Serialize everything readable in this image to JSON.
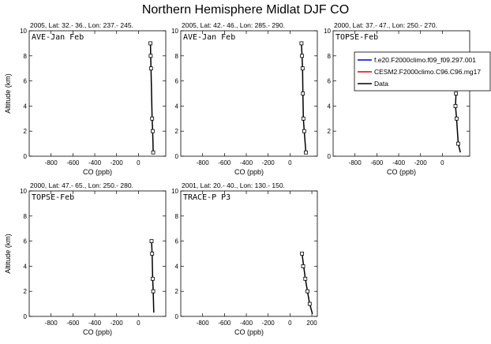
{
  "figure": {
    "title": "Northern Hemisphere Midlat DJF CO"
  },
  "legend": {
    "entries": [
      {
        "label": "f.e20.F2000climo.f09_f09.297.001",
        "color": "#0000cc"
      },
      {
        "label": "CESM2.F2000climo.C96.C96.mg17",
        "color": "#dd0000"
      },
      {
        "label": "Data",
        "color": "#000000"
      }
    ]
  },
  "chart_data": [
    {
      "type": "line",
      "subtitle": "2005, Lat: 32.- 36., Lon: 237.- 245.",
      "panel_label": "AVE-Jan Feb",
      "xlabel": "CO (ppb)",
      "ylabel": "Altitude (km)",
      "xlim": [
        -1000,
        250
      ],
      "ylim": [
        0,
        10
      ],
      "xticks": [
        -800,
        -600,
        -400,
        -200,
        0
      ],
      "yticks": [
        0,
        2,
        4,
        6,
        8,
        10
      ],
      "series": [
        {
          "color": "#000000",
          "x": [
            135,
            130,
            125,
            120,
            115,
            112,
            110
          ],
          "y": [
            0.3,
            2,
            3,
            5,
            7,
            8,
            9
          ]
        }
      ],
      "markers": {
        "x": [
          135,
          130,
          125,
          115,
          112,
          110
        ],
        "y": [
          0.3,
          2,
          3,
          7,
          8,
          9
        ]
      }
    },
    {
      "type": "line",
      "subtitle": "2005, Lat: 42.- 46., Lon: 285.- 290.",
      "panel_label": "AVE-Jan Feb",
      "xlabel": "CO (ppb)",
      "ylabel": "",
      "xlim": [
        -1000,
        250
      ],
      "ylim": [
        0,
        10
      ],
      "xticks": [
        -800,
        -600,
        -400,
        -200,
        0
      ],
      "yticks": [
        0,
        2,
        4,
        6,
        8,
        10
      ],
      "series": [
        {
          "color": "#000000",
          "x": [
            145,
            130,
            122,
            118,
            115,
            110,
            105
          ],
          "y": [
            0.3,
            2,
            3,
            5,
            7,
            8,
            9
          ]
        }
      ],
      "markers": {
        "x": [
          145,
          130,
          122,
          118,
          115,
          110,
          105
        ],
        "y": [
          0.3,
          2,
          3,
          5,
          7,
          8,
          9
        ]
      }
    },
    {
      "type": "line",
      "subtitle": "2000, Lat: 37.- 47., Lon: 250.- 270.",
      "panel_label": "TOPSE-Feb",
      "xlabel": "CO (ppb)",
      "ylabel": "",
      "xlim": [
        -1000,
        250
      ],
      "ylim": [
        0,
        10
      ],
      "xticks": [
        -800,
        -600,
        -400,
        -200,
        0
      ],
      "yticks": [
        0,
        2,
        4,
        6,
        8,
        10
      ],
      "series": [
        {
          "color": "#000000",
          "x": [
            165,
            145,
            130,
            120,
            125
          ],
          "y": [
            0.3,
            1,
            3,
            4,
            5
          ]
        }
      ],
      "markers": {
        "x": [
          145,
          130,
          120,
          125
        ],
        "y": [
          1,
          3,
          4,
          5
        ]
      }
    },
    {
      "type": "line",
      "subtitle": "2000, Lat: 47.- 65., Lon: 250.- 280.",
      "panel_label": "TOPSE-Feb",
      "xlabel": "CO (ppb)",
      "ylabel": "Altitude (km)",
      "xlim": [
        -1000,
        250
      ],
      "ylim": [
        0,
        10
      ],
      "xticks": [
        -800,
        -600,
        -400,
        -200,
        0
      ],
      "yticks": [
        0,
        2,
        4,
        6,
        8,
        10
      ],
      "series": [
        {
          "color": "#000000",
          "x": [
            140,
            135,
            130,
            125,
            120
          ],
          "y": [
            0.3,
            2,
            3,
            5,
            6
          ]
        }
      ],
      "markers": {
        "x": [
          135,
          130,
          125,
          120
        ],
        "y": [
          2,
          3,
          5,
          6
        ]
      }
    },
    {
      "type": "line",
      "subtitle": "2001, Lat: 20.- 40., Lon: 130.- 150.",
      "panel_label": "TRACE-P P3",
      "xlabel": "CO (ppb)",
      "ylabel": "",
      "xlim": [
        -1000,
        250
      ],
      "ylim": [
        0,
        10
      ],
      "xticks": [
        -800,
        -600,
        -400,
        -200,
        0,
        200
      ],
      "yticks": [
        0,
        2,
        4,
        6,
        8,
        10
      ],
      "series": [
        {
          "color": "#000000",
          "x": [
            205,
            180,
            160,
            140,
            110
          ],
          "y": [
            0.2,
            1,
            2,
            3,
            5
          ]
        }
      ],
      "markers": {
        "x": [
          180,
          160,
          140,
          120,
          110
        ],
        "y": [
          1,
          2,
          3,
          4,
          5
        ]
      }
    }
  ]
}
